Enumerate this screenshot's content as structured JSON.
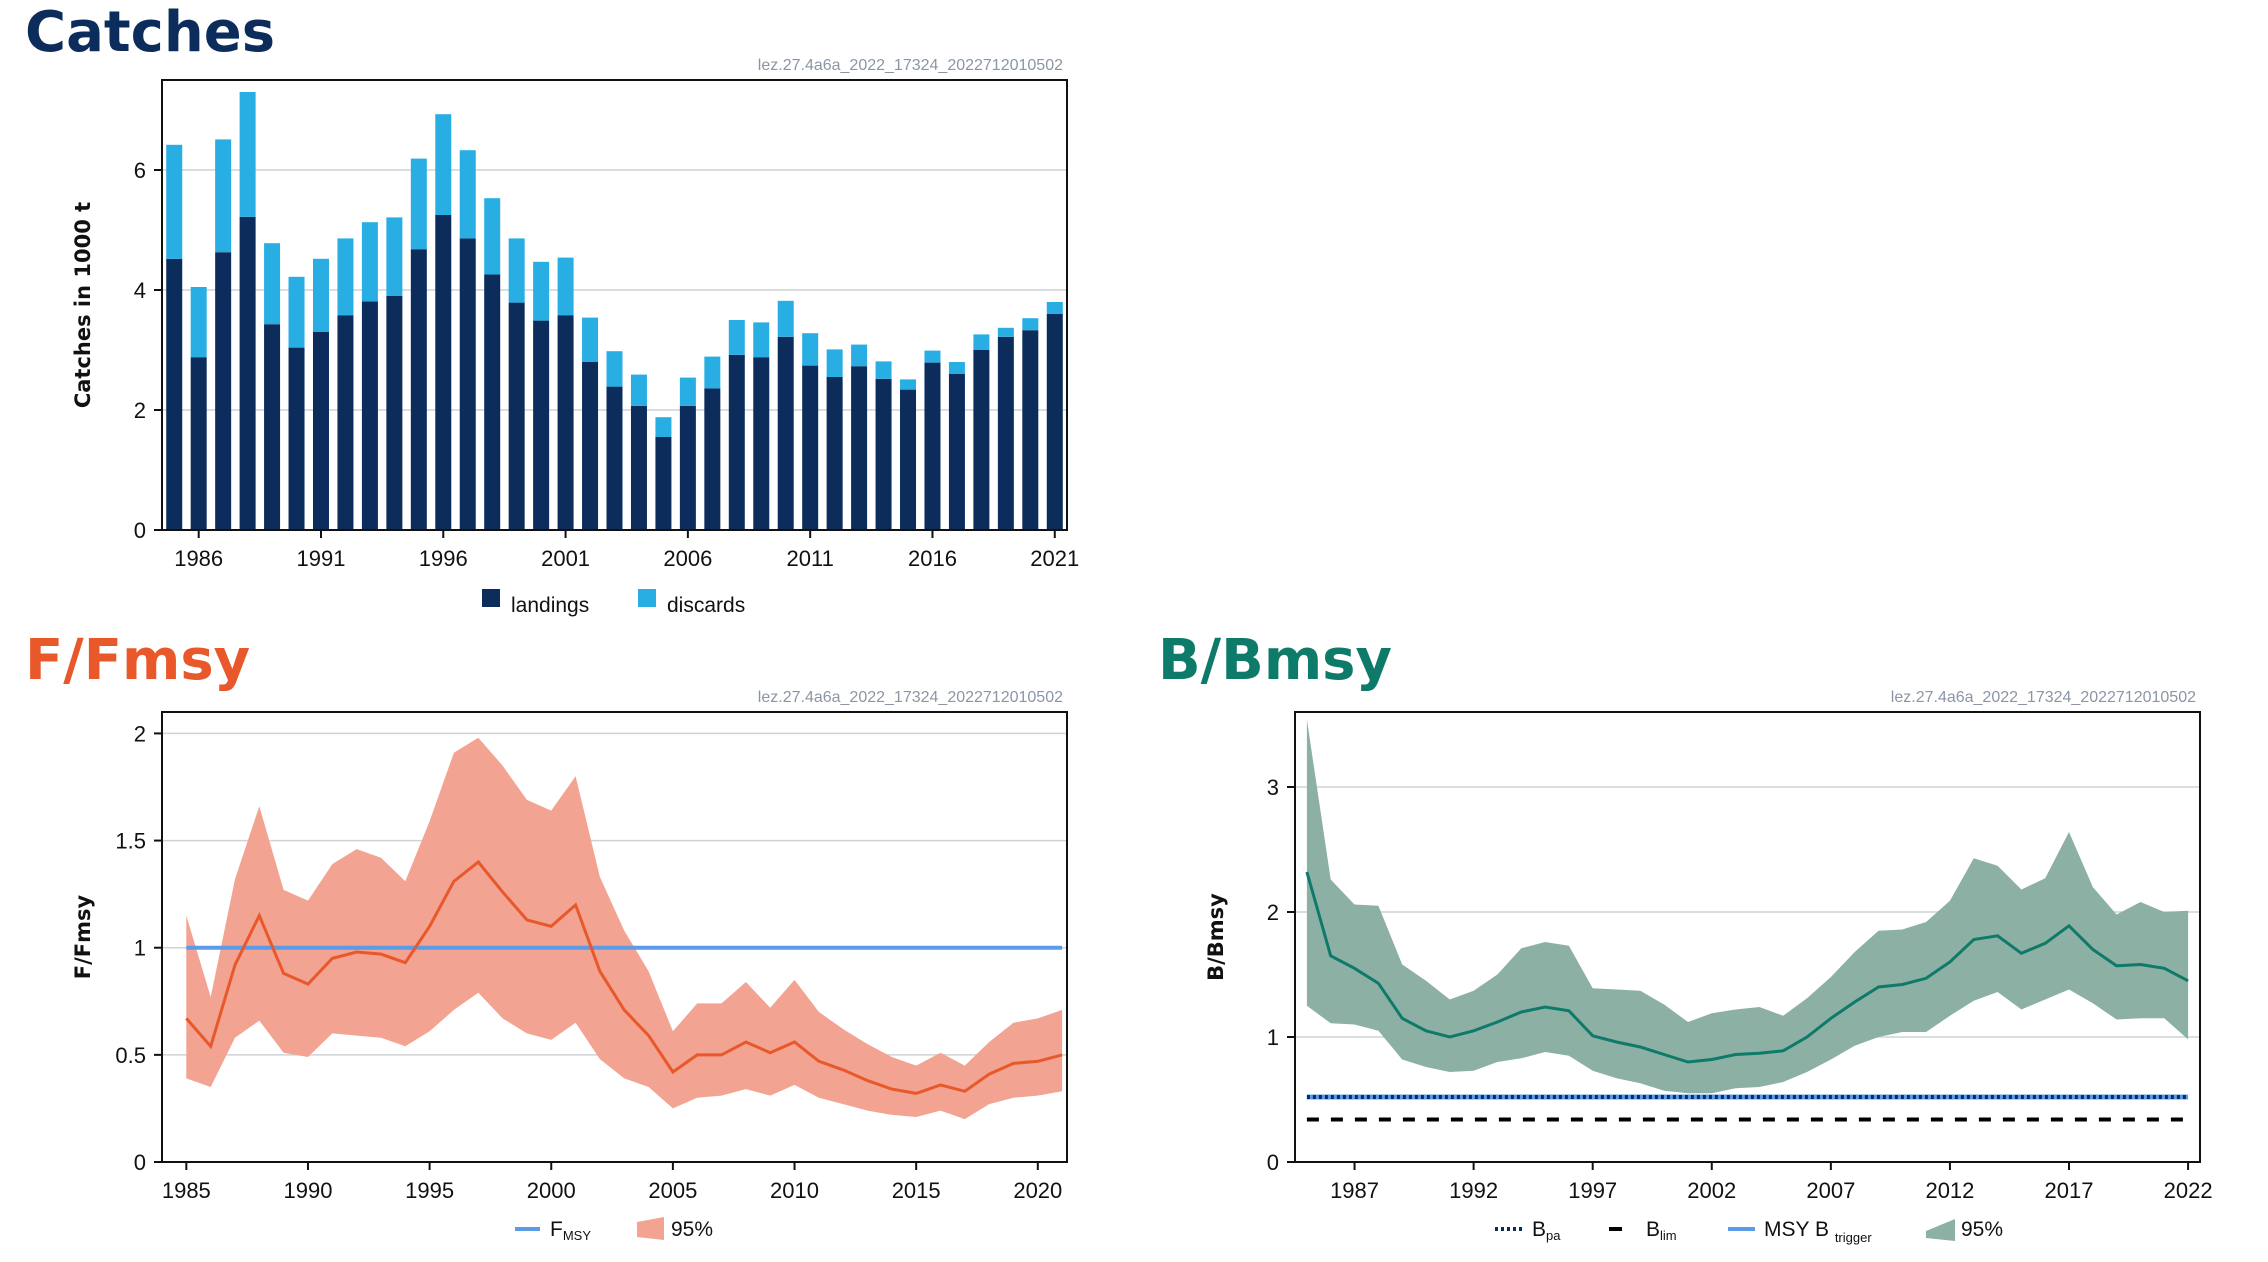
{
  "titles": {
    "catches": "Catches",
    "f": "F/Fmsy",
    "b": "B/Bmsy"
  },
  "colors": {
    "landings": "#0c2c5c",
    "discards": "#29aee3",
    "f_line": "#e8582a",
    "f_band": "#f2a391",
    "fmsy": "#5b9be8",
    "b_line": "#0e7a6a",
    "b_band": "#8db0a4",
    "bpa": "#0c2c5c",
    "blim": "#000000",
    "msybtrigger": "#5b9be8"
  },
  "chart_data": [
    {
      "type": "bar",
      "stock_id": "lez.27.4a6a_2022_17324_2022712010502",
      "ylabel": "Catches in 1000 t",
      "xlim": [
        1984.5,
        2021.5
      ],
      "ylim": [
        0,
        7.5
      ],
      "yticks": [
        0,
        2,
        4,
        6
      ],
      "xticks": [
        1986,
        1991,
        1996,
        2001,
        2006,
        2011,
        2016,
        2021
      ],
      "legend": [
        "landings",
        "discards"
      ],
      "legend_position": "bottom",
      "grid": true,
      "categories": [
        1985,
        1986,
        1987,
        1988,
        1989,
        1990,
        1991,
        1992,
        1993,
        1994,
        1995,
        1996,
        1997,
        1998,
        1999,
        2000,
        2001,
        2002,
        2003,
        2004,
        2005,
        2006,
        2007,
        2008,
        2009,
        2010,
        2011,
        2012,
        2013,
        2014,
        2015,
        2016,
        2017,
        2018,
        2019,
        2020,
        2021
      ],
      "series": [
        {
          "name": "landings",
          "values": [
            4.52,
            2.88,
            4.63,
            5.22,
            3.43,
            3.04,
            3.3,
            3.58,
            3.81,
            3.9,
            4.68,
            5.25,
            4.86,
            4.26,
            3.79,
            3.49,
            3.58,
            2.8,
            2.39,
            2.07,
            1.55,
            2.07,
            2.36,
            2.92,
            2.88,
            3.22,
            2.74,
            2.55,
            2.73,
            2.52,
            2.34,
            2.79,
            2.6,
            3.0,
            3.22,
            3.33,
            3.6
          ]
        },
        {
          "name": "discards",
          "values": [
            1.9,
            1.17,
            1.88,
            2.08,
            1.35,
            1.18,
            1.22,
            1.28,
            1.32,
            1.31,
            1.51,
            1.68,
            1.47,
            1.27,
            1.07,
            0.98,
            0.96,
            0.74,
            0.59,
            0.52,
            0.33,
            0.47,
            0.53,
            0.58,
            0.58,
            0.6,
            0.54,
            0.46,
            0.36,
            0.29,
            0.17,
            0.2,
            0.2,
            0.26,
            0.15,
            0.2,
            0.2
          ]
        }
      ]
    },
    {
      "type": "line",
      "stock_id": "lez.27.4a6a_2022_17324_2022712010502",
      "ylabel": "F/Fmsy",
      "xlim": [
        1984,
        2021.2
      ],
      "ylim": [
        0,
        2.1
      ],
      "yticks": [
        0,
        0.5,
        1,
        1.5,
        2
      ],
      "ytick_labels": [
        "0",
        "0.5",
        "1",
        "1.5",
        "2"
      ],
      "xticks": [
        1985,
        1990,
        1995,
        2000,
        2005,
        2010,
        2015,
        2020
      ],
      "legend": [
        "FMSY",
        "95%"
      ],
      "legend_position": "bottom",
      "grid": true,
      "x": [
        1985,
        1986,
        1987,
        1988,
        1989,
        1990,
        1991,
        1992,
        1993,
        1994,
        1995,
        1996,
        1997,
        1998,
        1999,
        2000,
        2001,
        2002,
        2003,
        2004,
        2005,
        2006,
        2007,
        2008,
        2009,
        2010,
        2011,
        2012,
        2013,
        2014,
        2015,
        2016,
        2017,
        2018,
        2019,
        2020,
        2021
      ],
      "series": [
        {
          "name": "F/Fmsy",
          "values": [
            0.67,
            0.54,
            0.92,
            1.15,
            0.88,
            0.83,
            0.95,
            0.98,
            0.97,
            0.93,
            1.1,
            1.31,
            1.4,
            1.26,
            1.13,
            1.1,
            1.2,
            0.89,
            0.71,
            0.59,
            0.42,
            0.5,
            0.5,
            0.56,
            0.51,
            0.56,
            0.47,
            0.43,
            0.38,
            0.34,
            0.32,
            0.36,
            0.33,
            0.41,
            0.46,
            0.47,
            0.5
          ]
        },
        {
          "name": "upper",
          "values": [
            1.15,
            0.77,
            1.32,
            1.66,
            1.27,
            1.22,
            1.39,
            1.46,
            1.42,
            1.31,
            1.59,
            1.91,
            1.98,
            1.85,
            1.69,
            1.64,
            1.8,
            1.33,
            1.08,
            0.89,
            0.61,
            0.74,
            0.74,
            0.84,
            0.72,
            0.85,
            0.7,
            0.62,
            0.55,
            0.49,
            0.45,
            0.51,
            0.45,
            0.56,
            0.65,
            0.67,
            0.71
          ]
        },
        {
          "name": "lower",
          "values": [
            0.39,
            0.35,
            0.58,
            0.66,
            0.51,
            0.49,
            0.6,
            0.59,
            0.58,
            0.54,
            0.61,
            0.71,
            0.79,
            0.67,
            0.6,
            0.57,
            0.65,
            0.48,
            0.39,
            0.35,
            0.25,
            0.3,
            0.31,
            0.34,
            0.31,
            0.36,
            0.3,
            0.27,
            0.24,
            0.22,
            0.21,
            0.24,
            0.2,
            0.27,
            0.3,
            0.31,
            0.33
          ]
        }
      ],
      "reference_lines": [
        {
          "name": "FMSY",
          "value": 1.0
        }
      ]
    },
    {
      "type": "line",
      "stock_id": "lez.27.4a6a_2022_17324_2022712010502",
      "ylabel": "B/Bmsy",
      "xlim": [
        1984.5,
        2022.5
      ],
      "ylim": [
        0,
        3.6
      ],
      "yticks": [
        0,
        1,
        2,
        3
      ],
      "xticks": [
        1987,
        1992,
        1997,
        2002,
        2007,
        2012,
        2017,
        2022
      ],
      "legend": [
        "Bpa",
        "Blim",
        "MSY Btrigger",
        "95%"
      ],
      "legend_position": "bottom",
      "grid": true,
      "x": [
        1985,
        1986,
        1987,
        1988,
        1989,
        1990,
        1991,
        1992,
        1993,
        1994,
        1995,
        1996,
        1997,
        1998,
        1999,
        2000,
        2001,
        2002,
        2003,
        2004,
        2005,
        2006,
        2007,
        2008,
        2009,
        2010,
        2011,
        2012,
        2013,
        2014,
        2015,
        2016,
        2017,
        2018,
        2019,
        2020,
        2021,
        2022
      ],
      "series": [
        {
          "name": "B/Bmsy",
          "values": [
            2.32,
            1.65,
            1.55,
            1.43,
            1.15,
            1.05,
            1.0,
            1.05,
            1.12,
            1.2,
            1.24,
            1.21,
            1.01,
            0.96,
            0.92,
            0.86,
            0.8,
            0.82,
            0.86,
            0.87,
            0.89,
            1.0,
            1.15,
            1.28,
            1.4,
            1.42,
            1.47,
            1.6,
            1.78,
            1.81,
            1.67,
            1.75,
            1.89,
            1.7,
            1.57,
            1.58,
            1.55,
            1.45
          ]
        },
        {
          "name": "upper",
          "values": [
            3.54,
            2.26,
            2.06,
            2.05,
            1.58,
            1.45,
            1.3,
            1.37,
            1.5,
            1.71,
            1.76,
            1.73,
            1.39,
            1.38,
            1.37,
            1.26,
            1.12,
            1.19,
            1.22,
            1.24,
            1.17,
            1.31,
            1.48,
            1.68,
            1.85,
            1.86,
            1.92,
            2.09,
            2.43,
            2.37,
            2.18,
            2.27,
            2.64,
            2.2,
            1.98,
            2.08,
            2.0,
            2.01
          ]
        },
        {
          "name": "lower",
          "values": [
            1.25,
            1.11,
            1.1,
            1.05,
            0.82,
            0.76,
            0.72,
            0.73,
            0.8,
            0.83,
            0.88,
            0.85,
            0.73,
            0.67,
            0.63,
            0.57,
            0.55,
            0.55,
            0.59,
            0.6,
            0.64,
            0.72,
            0.82,
            0.93,
            1.0,
            1.04,
            1.04,
            1.17,
            1.29,
            1.36,
            1.22,
            1.3,
            1.38,
            1.27,
            1.14,
            1.15,
            1.15,
            0.98
          ]
        }
      ],
      "reference_lines": [
        {
          "name": "Bpa",
          "value": 0.52
        },
        {
          "name": "Blim",
          "value": 0.34
        },
        {
          "name": "MSY Btrigger",
          "value": 0.52
        }
      ]
    }
  ]
}
